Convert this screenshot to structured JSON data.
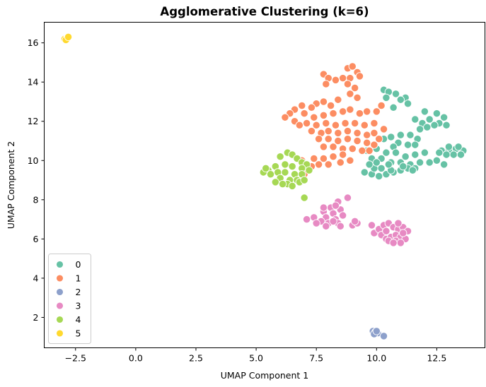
{
  "chart_data": {
    "type": "scatter",
    "title": "Agglomerative Clustering (k=6)",
    "xlabel": "UMAP Component 1",
    "ylabel": "UMAP Component 2",
    "xlim": [
      -3.8,
      14.5
    ],
    "ylim": [
      0.45,
      17.05
    ],
    "xticks": [
      "−2.5",
      "0.0",
      "2.5",
      "5.0",
      "7.5",
      "10.0",
      "12.5"
    ],
    "yticks": [
      "2",
      "4",
      "6",
      "8",
      "10",
      "12",
      "14",
      "16"
    ],
    "xtick_values": [
      -2.5,
      0.0,
      2.5,
      5.0,
      7.5,
      10.0,
      12.5
    ],
    "ytick_values": [
      2,
      4,
      6,
      8,
      10,
      12,
      14,
      16
    ],
    "grid": false,
    "legend_position": "lower-left",
    "series": [
      {
        "name": "0",
        "color": "#66c2a5",
        "points": [
          [
            10.3,
            13.6
          ],
          [
            10.5,
            13.5
          ],
          [
            10.8,
            13.4
          ],
          [
            10.4,
            13.2
          ],
          [
            11.2,
            13.2
          ],
          [
            11.3,
            12.9
          ],
          [
            11.0,
            13.1
          ],
          [
            10.7,
            12.7
          ],
          [
            12.0,
            12.5
          ],
          [
            12.5,
            12.4
          ],
          [
            12.8,
            12.2
          ],
          [
            12.2,
            12.1
          ],
          [
            11.9,
            11.9
          ],
          [
            12.6,
            11.9
          ],
          [
            12.9,
            11.8
          ],
          [
            11.6,
            12.1
          ],
          [
            11.8,
            11.6
          ],
          [
            12.1,
            11.7
          ],
          [
            12.4,
            11.8
          ],
          [
            10.3,
            11.1
          ],
          [
            10.6,
            11.2
          ],
          [
            11.0,
            11.3
          ],
          [
            11.4,
            11.3
          ],
          [
            11.7,
            11.1
          ],
          [
            10.9,
            10.9
          ],
          [
            11.3,
            10.8
          ],
          [
            10.7,
            10.7
          ],
          [
            11.6,
            10.8
          ],
          [
            9.6,
            10.5
          ],
          [
            10.0,
            10.6
          ],
          [
            10.4,
            10.4
          ],
          [
            10.8,
            10.4
          ],
          [
            11.2,
            10.2
          ],
          [
            11.6,
            10.3
          ],
          [
            12.0,
            10.4
          ],
          [
            9.8,
            10.1
          ],
          [
            10.2,
            10.1
          ],
          [
            10.6,
            9.9
          ],
          [
            11.0,
            9.9
          ],
          [
            11.4,
            9.8
          ],
          [
            11.8,
            9.9
          ],
          [
            12.2,
            9.9
          ],
          [
            12.5,
            10.0
          ],
          [
            12.8,
            9.8
          ],
          [
            9.5,
            9.4
          ],
          [
            9.8,
            9.3
          ],
          [
            10.1,
            9.2
          ],
          [
            10.4,
            9.3
          ],
          [
            10.7,
            9.4
          ],
          [
            11.0,
            9.5
          ],
          [
            11.3,
            9.6
          ],
          [
            11.6,
            9.6
          ],
          [
            9.9,
            9.6
          ],
          [
            10.2,
            9.6
          ],
          [
            10.6,
            9.5
          ],
          [
            9.7,
            9.8
          ],
          [
            10.0,
            9.9
          ],
          [
            10.5,
            9.8
          ],
          [
            11.1,
            9.7
          ],
          [
            11.5,
            9.5
          ],
          [
            12.7,
            10.5
          ],
          [
            13.0,
            10.5
          ],
          [
            13.3,
            10.6
          ],
          [
            13.6,
            10.5
          ],
          [
            12.9,
            10.3
          ],
          [
            13.2,
            10.3
          ],
          [
            13.5,
            10.3
          ],
          [
            13.0,
            10.7
          ],
          [
            13.4,
            10.7
          ],
          [
            12.6,
            10.4
          ]
        ]
      },
      {
        "name": "1",
        "color": "#fc8d62",
        "points": [
          [
            7.8,
            14.4
          ],
          [
            8.0,
            14.2
          ],
          [
            7.9,
            13.9
          ],
          [
            8.3,
            14.1
          ],
          [
            8.6,
            14.2
          ],
          [
            8.8,
            14.7
          ],
          [
            9.0,
            14.8
          ],
          [
            9.2,
            14.5
          ],
          [
            8.9,
            14.2
          ],
          [
            9.3,
            14.3
          ],
          [
            8.8,
            13.9
          ],
          [
            9.1,
            13.7
          ],
          [
            8.9,
            13.4
          ],
          [
            9.2,
            13.2
          ],
          [
            7.8,
            13.0
          ],
          [
            8.1,
            12.8
          ],
          [
            8.4,
            13.1
          ],
          [
            7.5,
            12.9
          ],
          [
            6.9,
            12.8
          ],
          [
            7.3,
            12.7
          ],
          [
            6.6,
            12.6
          ],
          [
            6.4,
            12.4
          ],
          [
            6.2,
            12.2
          ],
          [
            6.6,
            12.0
          ],
          [
            6.8,
            11.8
          ],
          [
            7.0,
            12.4
          ],
          [
            7.4,
            12.2
          ],
          [
            7.8,
            12.3
          ],
          [
            8.2,
            12.4
          ],
          [
            8.6,
            12.5
          ],
          [
            8.9,
            12.6
          ],
          [
            9.3,
            12.4
          ],
          [
            9.6,
            12.5
          ],
          [
            10.0,
            12.5
          ],
          [
            10.2,
            12.8
          ],
          [
            7.1,
            11.9
          ],
          [
            7.5,
            11.8
          ],
          [
            7.9,
            11.9
          ],
          [
            8.3,
            11.8
          ],
          [
            8.7,
            11.9
          ],
          [
            9.1,
            11.9
          ],
          [
            9.5,
            11.8
          ],
          [
            9.9,
            11.9
          ],
          [
            10.3,
            11.6
          ],
          [
            7.3,
            11.5
          ],
          [
            7.7,
            11.4
          ],
          [
            8.0,
            11.5
          ],
          [
            8.4,
            11.4
          ],
          [
            8.8,
            11.5
          ],
          [
            9.2,
            11.4
          ],
          [
            9.6,
            11.3
          ],
          [
            9.9,
            11.4
          ],
          [
            10.1,
            11.1
          ],
          [
            7.6,
            11.1
          ],
          [
            8.0,
            11.1
          ],
          [
            8.4,
            11.0
          ],
          [
            8.8,
            11.1
          ],
          [
            9.2,
            11.0
          ],
          [
            9.6,
            10.9
          ],
          [
            9.9,
            10.8
          ],
          [
            7.8,
            10.7
          ],
          [
            8.2,
            10.7
          ],
          [
            8.6,
            10.6
          ],
          [
            9.0,
            10.6
          ],
          [
            9.4,
            10.5
          ],
          [
            9.7,
            10.5
          ],
          [
            7.4,
            10.1
          ],
          [
            7.8,
            10.1
          ],
          [
            8.2,
            10.2
          ],
          [
            8.6,
            10.3
          ],
          [
            7.6,
            9.8
          ],
          [
            8.0,
            9.8
          ],
          [
            7.3,
            9.7
          ],
          [
            7.0,
            9.3
          ],
          [
            6.9,
            10.0
          ],
          [
            8.5,
            9.9
          ],
          [
            8.9,
            10.0
          ]
        ]
      },
      {
        "name": "2",
        "color": "#8da0cb",
        "points": [
          [
            9.85,
            1.3
          ],
          [
            9.95,
            1.25
          ],
          [
            10.05,
            1.2
          ],
          [
            10.3,
            1.05
          ],
          [
            9.9,
            1.15
          ],
          [
            10.0,
            1.3
          ]
        ]
      },
      {
        "name": "3",
        "color": "#e78ac3",
        "points": [
          [
            8.8,
            8.1
          ],
          [
            8.4,
            7.9
          ],
          [
            8.1,
            7.6
          ],
          [
            8.5,
            7.5
          ],
          [
            7.8,
            7.4
          ],
          [
            8.2,
            7.3
          ],
          [
            8.6,
            7.2
          ],
          [
            7.9,
            7.1
          ],
          [
            8.3,
            7.0
          ],
          [
            7.4,
            7.1
          ],
          [
            7.1,
            7.0
          ],
          [
            7.7,
            6.9
          ],
          [
            8.0,
            6.8
          ],
          [
            8.4,
            6.8
          ],
          [
            7.5,
            6.8
          ],
          [
            7.9,
            6.65
          ],
          [
            8.5,
            6.65
          ],
          [
            8.2,
            6.9
          ],
          [
            7.8,
            7.6
          ],
          [
            8.3,
            7.7
          ],
          [
            9.0,
            6.7
          ],
          [
            9.2,
            6.8
          ],
          [
            9.1,
            6.9
          ],
          [
            9.9,
            6.3
          ],
          [
            10.1,
            6.5
          ],
          [
            10.3,
            6.7
          ],
          [
            10.5,
            6.8
          ],
          [
            10.7,
            6.6
          ],
          [
            10.9,
            6.5
          ],
          [
            11.1,
            6.6
          ],
          [
            11.3,
            6.4
          ],
          [
            10.2,
            6.2
          ],
          [
            10.4,
            6.0
          ],
          [
            10.6,
            6.1
          ],
          [
            10.8,
            6.2
          ],
          [
            11.0,
            6.1
          ],
          [
            11.2,
            6.0
          ],
          [
            10.5,
            5.9
          ],
          [
            10.8,
            5.9
          ],
          [
            11.0,
            5.8
          ],
          [
            10.7,
            5.8
          ],
          [
            10.4,
            6.4
          ],
          [
            9.8,
            6.7
          ],
          [
            10.9,
            6.8
          ],
          [
            11.1,
            6.3
          ]
        ]
      },
      {
        "name": "4",
        "color": "#a6d854",
        "points": [
          [
            6.3,
            10.4
          ],
          [
            6.5,
            10.3
          ],
          [
            6.0,
            10.2
          ],
          [
            6.7,
            10.1
          ],
          [
            6.9,
            9.9
          ],
          [
            6.2,
            9.8
          ],
          [
            6.5,
            9.7
          ],
          [
            5.8,
            9.7
          ],
          [
            7.1,
            9.8
          ],
          [
            6.9,
            9.6
          ],
          [
            5.5,
            9.5
          ],
          [
            5.9,
            9.4
          ],
          [
            6.2,
            9.4
          ],
          [
            6.6,
            9.3
          ],
          [
            6.9,
            9.3
          ],
          [
            7.2,
            9.5
          ],
          [
            5.3,
            9.4
          ],
          [
            5.6,
            9.3
          ],
          [
            6.0,
            9.1
          ],
          [
            6.4,
            9.0
          ],
          [
            6.7,
            9.0
          ],
          [
            6.3,
            8.8
          ],
          [
            6.5,
            8.7
          ],
          [
            6.8,
            8.9
          ],
          [
            5.8,
            8.9
          ],
          [
            6.1,
            8.8
          ],
          [
            7.0,
            9.0
          ],
          [
            5.4,
            9.6
          ],
          [
            7.0,
            8.1
          ]
        ]
      },
      {
        "name": "5",
        "color": "#ffd92f",
        "points": [
          [
            -2.95,
            16.2
          ],
          [
            -2.85,
            16.25
          ],
          [
            -2.9,
            16.15
          ],
          [
            -2.8,
            16.3
          ]
        ]
      }
    ]
  }
}
